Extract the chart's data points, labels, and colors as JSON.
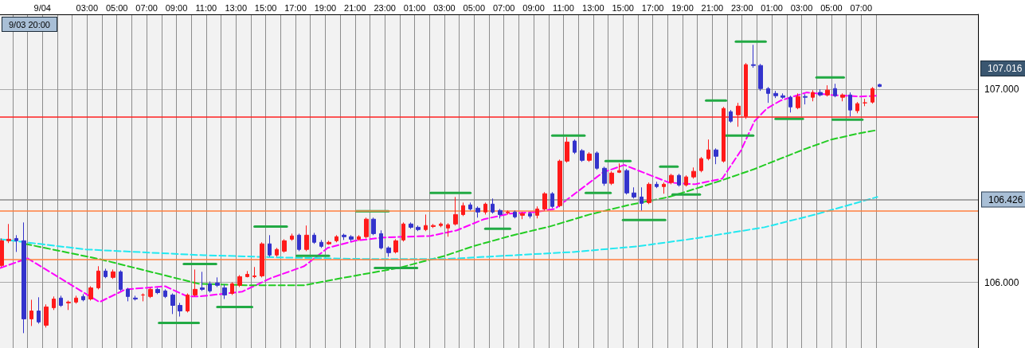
{
  "chart_data": {
    "type": "candlestick",
    "x": [
      "--09-03T21:15",
      "--09-03T21:45",
      "--09-03T22:15",
      "--09-03T22:45",
      "--09-03T23:15",
      "--09-03T23:45",
      "--09-04T00:15",
      "--09-04T00:45",
      "--09-04T01:15",
      "--09-04T01:45",
      "--09-04T02:15",
      "--09-04T02:45",
      "--09-04T03:15",
      "--09-04T03:45",
      "--09-04T04:15",
      "--09-04T04:45",
      "--09-04T05:15",
      "--09-04T05:45",
      "--09-04T06:15",
      "--09-04T06:45",
      "--09-04T07:15",
      "--09-04T07:45",
      "--09-04T08:15",
      "--09-04T08:45",
      "--09-04T09:15",
      "--09-04T09:45",
      "--09-04T10:15",
      "--09-04T10:45",
      "--09-04T11:15",
      "--09-04T11:45",
      "--09-04T12:15",
      "--09-04T12:45",
      "--09-04T13:15",
      "--09-04T13:45",
      "--09-04T14:15",
      "--09-04T14:45",
      "--09-04T15:15",
      "--09-04T15:45",
      "--09-04T16:15",
      "--09-04T16:45",
      "--09-04T17:15",
      "--09-04T17:45",
      "--09-04T18:15",
      "--09-04T18:45",
      "--09-04T19:15",
      "--09-04T19:45",
      "--09-04T20:15",
      "--09-04T20:45",
      "--09-04T21:15",
      "--09-04T21:45",
      "--09-04T22:15",
      "--09-04T22:45",
      "--09-04T23:15",
      "--09-04T23:45",
      "--09-05T00:15",
      "--09-05T00:45",
      "--09-05T01:15",
      "--09-05T01:45",
      "--09-05T02:15",
      "--09-05T02:45",
      "--09-05T03:15",
      "--09-05T03:45",
      "--09-05T04:15",
      "--09-05T04:45",
      "--09-05T05:15",
      "--09-05T05:45",
      "--09-05T06:15",
      "--09-05T06:45",
      "--09-05T07:15",
      "--09-05T07:45",
      "--09-05T08:15",
      "--09-05T08:45",
      "--09-05T09:15",
      "--09-05T09:45",
      "--09-05T10:15",
      "--09-05T10:45",
      "--09-05T11:15",
      "--09-05T11:45",
      "--09-05T12:15",
      "--09-05T12:45",
      "--09-05T13:15",
      "--09-05T13:45",
      "--09-05T14:15",
      "--09-05T14:45",
      "--09-05T15:15",
      "--09-05T15:45",
      "--09-05T16:15",
      "--09-05T16:45",
      "--09-05T17:15",
      "--09-05T17:45",
      "--09-05T18:15",
      "--09-05T18:45",
      "--09-05T19:15",
      "--09-05T19:45",
      "--09-05T20:15",
      "--09-05T20:45",
      "--09-05T21:15",
      "--09-05T21:45",
      "--09-05T22:15",
      "--09-05T22:45",
      "--09-05T23:15",
      "--09-05T23:45",
      "--09-06T00:15",
      "--09-06T00:45",
      "--09-06T01:15",
      "--09-06T01:45",
      "--09-06T02:15",
      "--09-06T02:45",
      "--09-06T03:15",
      "--09-06T03:45",
      "--09-06T04:15",
      "--09-06T04:45",
      "--09-06T05:15",
      "--09-06T05:45",
      "--09-06T06:15",
      "--09-06T06:45",
      "--09-06T07:15",
      "--09-06T07:45",
      "--09-06T08:15"
    ],
    "ohlc": [
      [
        106.088,
        106.228,
        106.08,
        106.216
      ],
      [
        106.216,
        106.303,
        106.204,
        106.224
      ],
      [
        106.228,
        106.245,
        106.158,
        106.216
      ],
      [
        106.216,
        106.311,
        105.737,
        105.811
      ],
      [
        105.811,
        105.91,
        105.774,
        105.852
      ],
      [
        105.852,
        105.923,
        105.786,
        105.795
      ],
      [
        105.778,
        105.886,
        105.766,
        105.873
      ],
      [
        105.869,
        105.927,
        105.857,
        105.914
      ],
      [
        105.919,
        105.931,
        105.873,
        105.881
      ],
      [
        105.894,
        105.906,
        105.857,
        105.898
      ],
      [
        105.898,
        105.931,
        105.89,
        105.919
      ],
      [
        105.927,
        105.939,
        105.902,
        105.91
      ],
      [
        105.914,
        105.98,
        105.906,
        105.972
      ],
      [
        105.972,
        106.084,
        105.964,
        106.059
      ],
      [
        106.059,
        106.071,
        106.022,
        106.03
      ],
      [
        106.026,
        106.067,
        106.018,
        106.055
      ],
      [
        106.055,
        106.063,
        105.956,
        105.964
      ],
      [
        105.964,
        105.972,
        105.902,
        105.927
      ],
      [
        105.919,
        105.931,
        105.906,
        105.914
      ],
      [
        105.935,
        105.943,
        105.902,
        105.935
      ],
      [
        105.927,
        105.972,
        105.919,
        105.964
      ],
      [
        105.964,
        105.972,
        105.939,
        105.947
      ],
      [
        105.956,
        105.964,
        105.919,
        105.927
      ],
      [
        105.935,
        105.943,
        105.836,
        105.881
      ],
      [
        105.881,
        105.894,
        105.823,
        105.852
      ],
      [
        105.852,
        105.943,
        105.844,
        105.935
      ],
      [
        105.935,
        106.067,
        105.927,
        105.964
      ],
      [
        105.972,
        106.055,
        105.956,
        105.964
      ],
      [
        105.993,
        106.005,
        105.947,
        105.956
      ],
      [
        105.997,
        106.026,
        105.976,
        105.985
      ],
      [
        105.972,
        105.989,
        105.914,
        105.935
      ],
      [
        105.943,
        106.001,
        105.935,
        105.993
      ],
      [
        105.985,
        106.038,
        105.976,
        106.03
      ],
      [
        106.03,
        106.059,
        106.026,
        106.042
      ],
      [
        106.03,
        106.08,
        106.022,
        106.034
      ],
      [
        106.034,
        106.208,
        106.026,
        106.2
      ],
      [
        106.2,
        106.245,
        106.133,
        106.142
      ],
      [
        106.142,
        106.179,
        106.133,
        106.171
      ],
      [
        106.162,
        106.224,
        106.154,
        106.216
      ],
      [
        106.224,
        106.253,
        106.216,
        106.241
      ],
      [
        106.245,
        106.253,
        106.162,
        106.171
      ],
      [
        106.171,
        106.295,
        106.162,
        106.245
      ],
      [
        106.245,
        106.257,
        106.2,
        106.208
      ],
      [
        106.208,
        106.22,
        106.179,
        106.187
      ],
      [
        106.2,
        106.216,
        106.195,
        106.208
      ],
      [
        106.216,
        106.245,
        106.208,
        106.237
      ],
      [
        106.245,
        106.253,
        106.22,
        106.237
      ],
      [
        106.237,
        106.245,
        106.212,
        106.224
      ],
      [
        106.224,
        106.245,
        106.216,
        106.237
      ],
      [
        106.237,
        106.336,
        106.228,
        106.328
      ],
      [
        106.328,
        106.336,
        106.245,
        106.253
      ],
      [
        106.253,
        106.27,
        106.171,
        106.179
      ],
      [
        106.179,
        106.187,
        106.133,
        106.154
      ],
      [
        106.158,
        106.224,
        106.15,
        106.216
      ],
      [
        106.22,
        106.311,
        106.212,
        106.303
      ],
      [
        106.303,
        106.311,
        106.278,
        106.286
      ],
      [
        106.286,
        106.295,
        106.266,
        106.274
      ],
      [
        106.274,
        106.352,
        106.266,
        106.295
      ],
      [
        106.29,
        106.303,
        106.282,
        106.295
      ],
      [
        106.295,
        106.311,
        106.286,
        106.303
      ],
      [
        106.282,
        106.307,
        106.237,
        106.299
      ],
      [
        106.303,
        106.443,
        106.295,
        106.352
      ],
      [
        106.352,
        106.414,
        106.344,
        106.398
      ],
      [
        106.402,
        106.414,
        106.373,
        106.381
      ],
      [
        106.385,
        106.394,
        106.336,
        106.365
      ],
      [
        106.365,
        106.414,
        106.352,
        106.406
      ],
      [
        106.406,
        106.435,
        106.357,
        106.365
      ],
      [
        106.373,
        106.381,
        106.332,
        106.352
      ],
      [
        106.361,
        106.373,
        106.352,
        106.365
      ],
      [
        106.365,
        106.373,
        106.332,
        106.34
      ],
      [
        106.348,
        106.365,
        106.328,
        106.357
      ],
      [
        106.357,
        106.365,
        106.332,
        106.344
      ],
      [
        106.348,
        106.394,
        106.332,
        106.381
      ],
      [
        106.381,
        106.468,
        106.373,
        106.46
      ],
      [
        106.46,
        106.468,
        106.385,
        106.394
      ],
      [
        106.398,
        106.637,
        106.39,
        106.629
      ],
      [
        106.629,
        106.753,
        106.621,
        106.728
      ],
      [
        106.733,
        106.741,
        106.666,
        106.675
      ],
      [
        106.683,
        106.691,
        106.625,
        106.633
      ],
      [
        106.633,
        106.675,
        106.625,
        106.666
      ],
      [
        106.671,
        106.679,
        106.584,
        106.592
      ],
      [
        106.592,
        106.6,
        106.501,
        106.514
      ],
      [
        106.514,
        106.576,
        106.505,
        106.567
      ],
      [
        106.571,
        106.617,
        106.567,
        106.58
      ],
      [
        106.58,
        106.588,
        106.456,
        106.464
      ],
      [
        106.464,
        106.493,
        106.435,
        106.443
      ],
      [
        106.443,
        106.493,
        106.373,
        106.41
      ],
      [
        106.414,
        106.518,
        106.406,
        106.509
      ],
      [
        106.509,
        106.522,
        106.489,
        106.497
      ],
      [
        106.497,
        106.518,
        106.46,
        106.509
      ],
      [
        106.518,
        106.563,
        106.509,
        106.555
      ],
      [
        106.555,
        106.563,
        106.497,
        106.505
      ],
      [
        106.505,
        106.555,
        106.497,
        106.547
      ],
      [
        106.547,
        106.596,
        106.538,
        106.576
      ],
      [
        106.58,
        106.65,
        106.571,
        106.642
      ],
      [
        106.642,
        106.741,
        106.633,
        106.687
      ],
      [
        106.687,
        106.695,
        106.613,
        106.654
      ],
      [
        106.629,
        106.91,
        106.621,
        106.902
      ],
      [
        106.885,
        106.894,
        106.828,
        106.836
      ],
      [
        106.869,
        106.931,
        106.807,
        106.914
      ],
      [
        106.861,
        107.137,
        106.848,
        107.129
      ],
      [
        107.129,
        107.232,
        107.113,
        107.125
      ],
      [
        107.125,
        107.133,
        106.993,
        107.005
      ],
      [
        107.005,
        107.013,
        106.931,
        106.98
      ],
      [
        106.98,
        106.993,
        106.956,
        106.968
      ],
      [
        106.968,
        106.98,
        106.952,
        106.96
      ],
      [
        106.96,
        106.968,
        106.881,
        106.91
      ],
      [
        106.906,
        106.98,
        106.898,
        106.964
      ],
      [
        106.964,
        106.976,
        106.923,
        106.96
      ],
      [
        106.96,
        106.997,
        106.939,
        106.985
      ],
      [
        106.985,
        107.001,
        106.964,
        106.972
      ],
      [
        106.972,
        107.022,
        106.964,
        106.997
      ],
      [
        107.005,
        107.03,
        106.96,
        106.968
      ],
      [
        106.96,
        106.98,
        106.939,
        106.972
      ],
      [
        106.972,
        106.985,
        106.861,
        106.894
      ],
      [
        106.89,
        106.935,
        106.877,
        106.927
      ],
      [
        106.931,
        106.952,
        106.914,
        106.931
      ],
      [
        106.935,
        107.013,
        106.927,
        107.005
      ],
      [
        107.026,
        107.03,
        107.013,
        107.016
      ]
    ],
    "series": [
      {
        "type": "line",
        "color": "#ff00ff",
        "line_style": "dashed",
        "marker": "none",
        "x": [
          "--09-03T21:10",
          "--09-03T23:00",
          "--09-04T03:50",
          "--09-04T05:35",
          "--09-04T08:15",
          "--09-04T09:45",
          "--09-04T10:30",
          "--09-04T13:25",
          "--09-04T15:20",
          "--09-04T17:35",
          "--09-04T19:10",
          "--09-04T21:00",
          "--09-04T22:55",
          "--09-05T02:05",
          "--09-05T03:50",
          "--09-05T05:40",
          "--09-05T07:25",
          "--09-05T09:10",
          "--09-05T10:25",
          "--09-05T11:50",
          "--09-05T13:40",
          "--09-05T15:05",
          "--09-05T16:20",
          "--09-05T18:05",
          "--09-05T19:50",
          "--09-05T21:40",
          "--09-05T22:55",
          "--09-05T23:50",
          "--09-06T00:40",
          "--09-06T01:35",
          "--09-06T03:20",
          "--09-06T05:00",
          "--09-06T06:55",
          "--09-06T08:05"
        ],
        "values": [
          106.075,
          106.125,
          105.898,
          105.964,
          105.98,
          105.927,
          105.927,
          105.952,
          106.022,
          106.084,
          106.179,
          106.216,
          106.233,
          106.241,
          106.27,
          106.328,
          106.357,
          106.365,
          106.381,
          106.464,
          106.571,
          106.609,
          106.571,
          106.518,
          106.509,
          106.538,
          106.683,
          106.836,
          106.902,
          106.943,
          106.985,
          106.972,
          106.964,
          106.968
        ]
      },
      {
        "type": "line",
        "color": "#22cc22",
        "line_style": "dashed",
        "marker": "none",
        "x": [
          "--09-03T22:50",
          "--09-04T03:50",
          "--09-04T10:30",
          "--09-04T14:00",
          "--09-04T17:35",
          "--09-04T20:05",
          "--09-04T23:55",
          "--09-05T03:00",
          "--09-05T04:55",
          "--09-05T07:25",
          "--09-05T10:05",
          "--09-05T12:45",
          "--09-05T15:25",
          "--09-05T18:05",
          "--09-05T19:50",
          "--09-05T21:40",
          "--09-05T23:50",
          "--09-06T01:35",
          "--09-06T03:20",
          "--09-06T05:00",
          "--09-06T06:55",
          "--09-06T08:05"
        ],
        "values": [
          106.2,
          106.121,
          105.993,
          105.985,
          105.985,
          106.022,
          106.075,
          106.137,
          106.187,
          106.241,
          106.29,
          106.352,
          106.402,
          106.443,
          106.485,
          106.53,
          106.588,
          106.642,
          106.695,
          106.741,
          106.774,
          106.79
        ]
      },
      {
        "type": "line",
        "color": "#22e8f0",
        "line_style": "dashed",
        "marker": "none",
        "x": [
          "--09-03T21:10",
          "--09-04T02:55",
          "--09-04T10:30",
          "--09-04T16:15",
          "--09-04T22:00",
          "--09-05T03:00",
          "--09-05T07:55",
          "--09-05T11:40",
          "--09-05T16:00",
          "--09-05T19:50",
          "--09-06T00:30",
          "--09-06T03:55",
          "--09-06T08:05"
        ],
        "values": [
          106.224,
          106.171,
          106.142,
          106.129,
          106.121,
          106.121,
          106.142,
          106.158,
          106.187,
          106.228,
          106.286,
          106.352,
          106.443
        ]
      },
      {
        "type": "line",
        "color": "#22aa44",
        "x": [
          "--09-04T07:50",
          "--09-04T10:30"
        ],
        "values": [
          105.79,
          105.79
        ]
      },
      {
        "type": "line",
        "color": "#22aa44",
        "x": [
          "--09-04T09:30",
          "--09-04T11:40"
        ],
        "values": [
          106.096,
          106.096
        ]
      },
      {
        "type": "line",
        "color": "#22aa44",
        "x": [
          "--09-04T11:45",
          "--09-04T14:05"
        ],
        "values": [
          105.873,
          105.873
        ]
      },
      {
        "type": "line",
        "color": "#22aa44",
        "x": [
          "--09-04T14:15",
          "--09-04T16:25"
        ],
        "values": [
          106.29,
          106.29
        ]
      },
      {
        "type": "line",
        "color": "#22aa44",
        "x": [
          "--09-04T17:05",
          "--09-04T19:15"
        ],
        "values": [
          106.138,
          106.138
        ]
      },
      {
        "type": "line",
        "color": "#22aa44",
        "x": [
          "--09-04T21:05",
          "--09-04T23:15"
        ],
        "values": [
          106.369,
          106.369
        ]
      },
      {
        "type": "line",
        "color": "#22aa44",
        "x": [
          "--09-04T22:20",
          "--09-05T01:10"
        ],
        "values": [
          106.075,
          106.075
        ]
      },
      {
        "type": "line",
        "color": "#22aa44",
        "x": [
          "--09-05T02:05",
          "--09-05T04:45"
        ],
        "values": [
          106.464,
          106.464
        ]
      },
      {
        "type": "line",
        "color": "#22aa44",
        "x": [
          "--09-05T05:45",
          "--09-05T07:25"
        ],
        "values": [
          106.278,
          106.278
        ]
      },
      {
        "type": "line",
        "color": "#22aa44",
        "x": [
          "--09-05T10:15",
          "--09-05T12:25"
        ],
        "values": [
          106.761,
          106.761
        ]
      },
      {
        "type": "line",
        "color": "#22aa44",
        "x": [
          "--09-05T12:30",
          "--09-05T14:10"
        ],
        "values": [
          106.464,
          106.464
        ]
      },
      {
        "type": "line",
        "color": "#22aa44",
        "x": [
          "--09-05T13:50",
          "--09-05T15:30"
        ],
        "values": [
          106.629,
          106.629
        ]
      },
      {
        "type": "line",
        "color": "#22aa44",
        "x": [
          "--09-05T15:00",
          "--09-05T17:50"
        ],
        "values": [
          106.324,
          106.324
        ]
      },
      {
        "type": "line",
        "color": "#22aa44",
        "x": [
          "--09-05T17:30",
          "--09-05T18:40"
        ],
        "values": [
          106.6,
          106.6
        ]
      },
      {
        "type": "line",
        "color": "#22aa44",
        "x": [
          "--09-05T18:20",
          "--09-05T20:10"
        ],
        "values": [
          106.456,
          106.456
        ]
      },
      {
        "type": "line",
        "color": "#22aa44",
        "x": [
          "--09-05T20:35",
          "--09-05T21:55"
        ],
        "values": [
          106.943,
          106.943
        ]
      },
      {
        "type": "line",
        "color": "#22aa44",
        "x": [
          "--09-05T21:45",
          "--09-05T23:45"
        ],
        "values": [
          106.761,
          106.761
        ]
      },
      {
        "type": "line",
        "color": "#22aa44",
        "x": [
          "--09-05T22:35",
          "--09-06T00:35"
        ],
        "values": [
          107.249,
          107.249
        ]
      },
      {
        "type": "line",
        "color": "#22aa44",
        "x": [
          "--09-06T01:15",
          "--09-06T03:05"
        ],
        "values": [
          106.848,
          106.848
        ]
      },
      {
        "type": "line",
        "color": "#22aa44",
        "x": [
          "--09-06T04:00",
          "--09-06T05:50"
        ],
        "values": [
          107.063,
          107.063
        ]
      },
      {
        "type": "line",
        "color": "#22aa44",
        "x": [
          "--09-06T05:05",
          "--09-06T07:05"
        ],
        "values": [
          106.844,
          106.844
        ]
      }
    ],
    "xlim": [
      "--09-03T21:09",
      "--09-06T14:51"
    ],
    "xticks": [
      {
        "value": "--09-03T22:00",
        "label": null
      },
      {
        "value": "--09-03T23:00",
        "label": null
      },
      {
        "value": "--09-04T00:00",
        "label": "9/04"
      },
      {
        "value": "--09-04T01:00",
        "label": null
      },
      {
        "value": "--09-04T02:00",
        "label": null
      },
      {
        "value": "--09-04T03:00",
        "label": "03:00"
      },
      {
        "value": "--09-04T04:00",
        "label": null
      },
      {
        "value": "--09-04T05:00",
        "label": "05:00"
      },
      {
        "value": "--09-04T06:00",
        "label": null
      },
      {
        "value": "--09-04T07:00",
        "label": "07:00"
      },
      {
        "value": "--09-04T08:00",
        "label": null
      },
      {
        "value": "--09-04T09:00",
        "label": "09:00"
      },
      {
        "value": "--09-04T10:00",
        "label": null
      },
      {
        "value": "--09-04T11:00",
        "label": "11:00"
      },
      {
        "value": "--09-04T12:00",
        "label": null
      },
      {
        "value": "--09-04T13:00",
        "label": "13:00"
      },
      {
        "value": "--09-04T14:00",
        "label": null
      },
      {
        "value": "--09-04T15:00",
        "label": "15:00"
      },
      {
        "value": "--09-04T16:00",
        "label": null
      },
      {
        "value": "--09-04T17:00",
        "label": "17:00"
      },
      {
        "value": "--09-04T18:00",
        "label": null
      },
      {
        "value": "--09-04T19:00",
        "label": "19:00"
      },
      {
        "value": "--09-04T20:00",
        "label": null
      },
      {
        "value": "--09-04T21:00",
        "label": "21:00"
      },
      {
        "value": "--09-04T22:00",
        "label": null
      },
      {
        "value": "--09-04T23:00",
        "label": "23:00"
      },
      {
        "value": "--09-05T00:00",
        "label": null
      },
      {
        "value": "--09-05T01:00",
        "label": "01:00"
      },
      {
        "value": "--09-05T02:00",
        "label": null
      },
      {
        "value": "--09-05T03:00",
        "label": "03:00"
      },
      {
        "value": "--09-05T04:00",
        "label": null
      },
      {
        "value": "--09-05T05:00",
        "label": "05:00"
      },
      {
        "value": "--09-05T06:00",
        "label": null
      },
      {
        "value": "--09-05T07:00",
        "label": "07:00"
      },
      {
        "value": "--09-05T08:00",
        "label": null
      },
      {
        "value": "--09-05T09:00",
        "label": "09:00"
      },
      {
        "value": "--09-05T10:00",
        "label": null
      },
      {
        "value": "--09-05T11:00",
        "label": "11:00"
      },
      {
        "value": "--09-05T12:00",
        "label": null
      },
      {
        "value": "--09-05T13:00",
        "label": "13:00"
      },
      {
        "value": "--09-05T14:00",
        "label": null
      },
      {
        "value": "--09-05T15:00",
        "label": "15:00"
      },
      {
        "value": "--09-05T16:00",
        "label": null
      },
      {
        "value": "--09-05T17:00",
        "label": "17:00"
      },
      {
        "value": "--09-05T18:00",
        "label": null
      },
      {
        "value": "--09-05T19:00",
        "label": "19:00"
      },
      {
        "value": "--09-05T20:00",
        "label": null
      },
      {
        "value": "--09-05T21:00",
        "label": "21:00"
      },
      {
        "value": "--09-05T22:00",
        "label": null
      },
      {
        "value": "--09-05T23:00",
        "label": "23:00"
      },
      {
        "value": "--09-06T00:00",
        "label": null
      },
      {
        "value": "--09-06T01:00",
        "label": "01:00"
      },
      {
        "value": "--09-06T02:00",
        "label": null
      },
      {
        "value": "--09-06T03:00",
        "label": "03:00"
      },
      {
        "value": "--09-06T04:00",
        "label": null
      },
      {
        "value": "--09-06T05:00",
        "label": "05:00"
      },
      {
        "value": "--09-06T06:00",
        "label": null
      },
      {
        "value": "--09-06T07:00",
        "label": "07:00"
      },
      {
        "value": "--09-06T08:00",
        "label": null
      }
    ],
    "ylim": [
      105.66,
      107.39
    ],
    "yticks": [
      {
        "value": 106,
        "label": "106.000"
      },
      {
        "value": 107,
        "label": "107.000"
      }
    ],
    "grid": true,
    "ref_lines": [
      {
        "axis": "y",
        "value": 106.426,
        "label": "106.426",
        "color": "#8c8c8c"
      },
      {
        "axis": "y",
        "value": 106.37,
        "label": null,
        "color": "#ff7f3f"
      },
      {
        "axis": "y",
        "value": 106.119,
        "label": null,
        "color": "#ff7f3f"
      },
      {
        "axis": "y",
        "value": 106.862,
        "label": null,
        "color": "#ff2020"
      }
    ],
    "annotations": [
      "9/03 20:00",
      "107.016"
    ]
  }
}
